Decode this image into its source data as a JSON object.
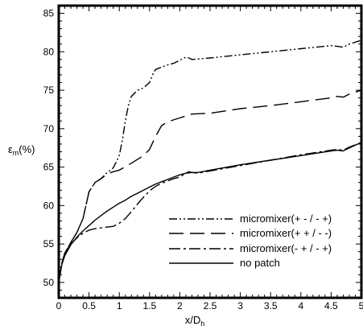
{
  "chart_data": {
    "type": "line",
    "xlabel": "x/D",
    "xlabel_sub": "h",
    "ylabel": "ε",
    "ylabel_sub": "m",
    "ylabel_suffix": "(%)",
    "xlim": [
      0,
      5
    ],
    "ylim": [
      48,
      86
    ],
    "x_ticks": [
      0,
      0.5,
      1,
      1.5,
      2,
      2.5,
      3,
      3.5,
      4,
      4.5,
      5
    ],
    "x_tick_labels": [
      "0",
      "0.5",
      "1",
      "1.5",
      "2",
      "2.5",
      "3",
      "3.5",
      "4",
      "4.5",
      "5"
    ],
    "y_ticks": [
      50,
      55,
      60,
      65,
      70,
      75,
      80,
      85
    ],
    "y_tick_labels": [
      "50",
      "55",
      "60",
      "65",
      "70",
      "75",
      "80",
      "85"
    ],
    "grid": false,
    "legend_position": "bottom-right",
    "series": [
      {
        "name": "micromixer(+ - / - +)",
        "dash": "10,3,2,3,2,3",
        "x": [
          0,
          0.05,
          0.1,
          0.2,
          0.3,
          0.4,
          0.5,
          0.6,
          0.7,
          0.8,
          0.9,
          1.0,
          1.05,
          1.1,
          1.15,
          1.2,
          1.3,
          1.4,
          1.5,
          1.55,
          1.6,
          1.7,
          1.8,
          1.9,
          2.0,
          2.1,
          2.15,
          2.2,
          2.5,
          3.0,
          3.5,
          4.0,
          4.5,
          4.6,
          4.7,
          4.8,
          5.0
        ],
        "y": [
          50,
          52.5,
          53.8,
          55.2,
          56.5,
          58.3,
          61.8,
          63.0,
          63.5,
          64.3,
          64.9,
          66.5,
          68.5,
          71.0,
          73.0,
          74.2,
          75.0,
          75.3,
          76.0,
          77.0,
          77.7,
          78.0,
          78.3,
          78.5,
          78.9,
          79.3,
          79.2,
          79.0,
          79.2,
          79.6,
          80.0,
          80.4,
          80.8,
          80.7,
          80.6,
          81.0,
          81.5
        ]
      },
      {
        "name": "micromixer(+ + / - -)",
        "dash": "18,8",
        "x": [
          0,
          0.05,
          0.1,
          0.2,
          0.3,
          0.4,
          0.5,
          0.6,
          0.7,
          0.8,
          0.9,
          1.0,
          1.2,
          1.4,
          1.5,
          1.6,
          1.7,
          1.8,
          2.0,
          2.2,
          2.5,
          3.0,
          3.5,
          4.0,
          4.5,
          4.6,
          4.7,
          4.8,
          5.0
        ],
        "y": [
          50,
          52.5,
          53.8,
          55.2,
          56.5,
          58.3,
          61.8,
          63.0,
          63.5,
          64.1,
          64.4,
          64.6,
          65.5,
          66.5,
          67.3,
          69.0,
          70.4,
          70.9,
          71.4,
          71.9,
          72.0,
          72.6,
          73.0,
          73.5,
          74.0,
          74.2,
          74.1,
          74.5,
          75.0
        ]
      },
      {
        "name": "micromixer(- + / - +)",
        "dash": "14,4,3,4",
        "x": [
          0,
          0.05,
          0.1,
          0.2,
          0.3,
          0.4,
          0.5,
          0.6,
          0.7,
          0.8,
          0.9,
          1.0,
          1.1,
          1.2,
          1.3,
          1.4,
          1.5,
          1.6,
          1.7,
          1.8,
          1.9,
          2.0,
          2.1,
          2.15,
          2.2,
          2.3,
          2.5,
          3.0,
          3.5,
          4.0,
          4.5,
          4.6,
          4.7,
          4.8,
          5.0
        ],
        "y": [
          50,
          52.5,
          53.8,
          55.0,
          55.8,
          56.4,
          56.8,
          57.0,
          57.1,
          57.2,
          57.3,
          57.7,
          58.3,
          59.2,
          60.2,
          61.1,
          61.9,
          62.5,
          62.9,
          63.2,
          63.5,
          63.7,
          64.2,
          64.4,
          64.3,
          64.2,
          64.5,
          65.2,
          65.9,
          66.6,
          67.2,
          67.3,
          67.2,
          67.6,
          68.2
        ]
      },
      {
        "name": "no patch",
        "dash": "",
        "x": [
          0,
          0.05,
          0.1,
          0.2,
          0.3,
          0.4,
          0.5,
          0.6,
          0.7,
          0.8,
          0.9,
          1.0,
          1.1,
          1.2,
          1.3,
          1.4,
          1.5,
          1.6,
          1.7,
          1.8,
          1.9,
          2.0,
          2.1,
          2.2,
          2.3,
          2.5,
          3.0,
          3.5,
          4.0,
          4.5,
          4.6,
          4.7,
          4.8,
          5.0
        ],
        "y": [
          50,
          52.3,
          53.5,
          54.9,
          55.9,
          56.7,
          57.4,
          58.1,
          58.7,
          59.3,
          59.8,
          60.3,
          60.7,
          61.2,
          61.6,
          62.0,
          62.4,
          62.8,
          63.1,
          63.4,
          63.7,
          64.0,
          64.2,
          64.3,
          64.3,
          64.6,
          65.3,
          65.9,
          66.5,
          67.1,
          67.2,
          67.1,
          67.5,
          68.2
        ]
      }
    ]
  }
}
